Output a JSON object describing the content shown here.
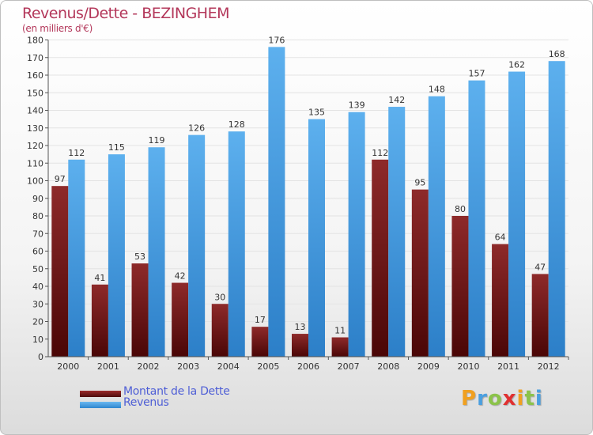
{
  "chart_data": {
    "type": "bar",
    "title": "Revenus/Dette - BEZINGHEM",
    "subtitle": "(en milliers d'€)",
    "categories": [
      "2000",
      "2001",
      "2002",
      "2003",
      "2004",
      "2005",
      "2006",
      "2007",
      "2008",
      "2009",
      "2010",
      "2011",
      "2012"
    ],
    "series": [
      {
        "name": "Montant de la Dette",
        "color": "#7a1a1a",
        "values": [
          97,
          41,
          53,
          42,
          30,
          17,
          13,
          11,
          112,
          95,
          80,
          64,
          47
        ]
      },
      {
        "name": "Revenus",
        "color": "#4a9fe0",
        "values": [
          112,
          115,
          119,
          126,
          128,
          176,
          135,
          139,
          142,
          148,
          157,
          162,
          168
        ]
      }
    ],
    "ylim": [
      0,
      180
    ],
    "yticks": [
      0,
      10,
      20,
      30,
      40,
      50,
      60,
      70,
      80,
      90,
      100,
      110,
      120,
      130,
      140,
      150,
      160,
      170,
      180
    ],
    "grid": true,
    "legend": "bottom-left"
  },
  "logo": {
    "letters": [
      "P",
      "r",
      "o",
      "x",
      "i",
      "t",
      "i"
    ],
    "colors": [
      "#f0a020",
      "#4a9fe0",
      "#8bc34a",
      "#e03030",
      "#f0a020",
      "#8bc34a",
      "#4a9fe0"
    ]
  }
}
